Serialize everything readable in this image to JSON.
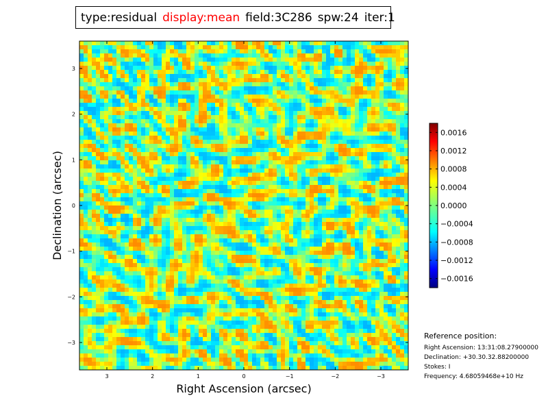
{
  "header": {
    "type_label": "type:residual",
    "display_label": "display:mean",
    "field_label": "field:3C286",
    "spw_label": "spw:24",
    "iter_label": "iter:1",
    "display_color": "#ff0000"
  },
  "chart_data": {
    "type": "heatmap",
    "xlabel": "Right Ascension (arcsec)",
    "ylabel": "Declination (arcsec)",
    "xlim": [
      3.6,
      -3.6
    ],
    "ylim": [
      -3.6,
      3.6
    ],
    "xticks": [
      3,
      2,
      1,
      0,
      -1,
      -2,
      -3
    ],
    "xtick_labels": [
      "3",
      "2",
      "1",
      "0",
      "−1",
      "−2",
      "−3"
    ],
    "yticks": [
      3,
      2,
      1,
      0,
      -1,
      -2,
      -3
    ],
    "ytick_labels": [
      "3",
      "2",
      "1",
      "0",
      "−1",
      "−2",
      "−3"
    ],
    "colorbar": {
      "vmin": -0.0018,
      "vmax": 0.0018,
      "colormap": "jet",
      "ticks": [
        0.0016,
        0.0012,
        0.0008,
        0.0004,
        0.0,
        -0.0004,
        -0.0008,
        -0.0012,
        -0.0016
      ],
      "tick_labels": [
        "0.0016",
        "0.0012",
        "0.0008",
        "0.0004",
        "0.0000",
        "−0.0004",
        "−0.0008",
        "−0.0012",
        "−0.0016"
      ]
    },
    "description": "residual noise image with no significant source"
  },
  "reference": {
    "heading": "Reference position:",
    "ra": "Right Ascension: 13:31:08.27900000",
    "dec": "Declination: +30.30.32.88200000",
    "stokes": "Stokes: I",
    "frequency": "Frequency: 4.68059468e+10 Hz"
  }
}
